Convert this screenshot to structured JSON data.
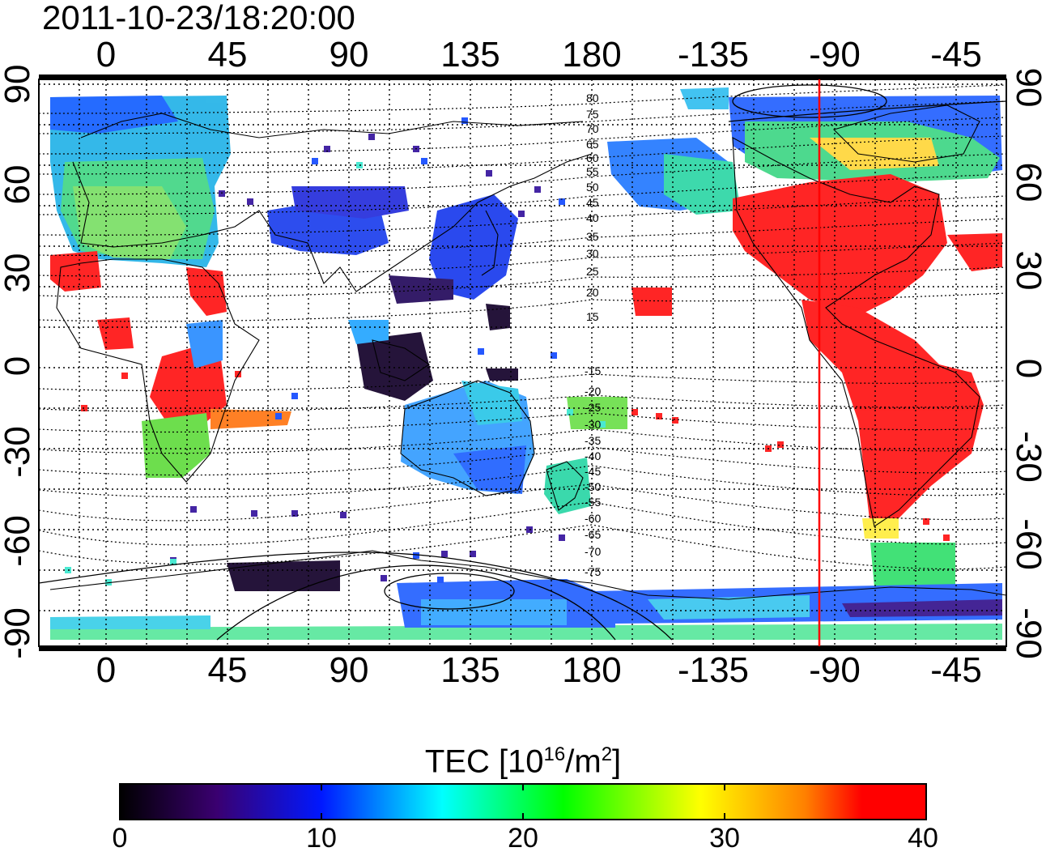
{
  "title": "2011-10-23/18:20:00",
  "map": {
    "top_ticks": [
      "0",
      "45",
      "90",
      "135",
      "180",
      "-135",
      "-90",
      "-45"
    ],
    "bottom_ticks": [
      "0",
      "45",
      "90",
      "135",
      "180",
      "-135",
      "-90",
      "-45"
    ],
    "left_ticks": [
      "90",
      "60",
      "30",
      "0",
      "-30",
      "-60",
      "-90"
    ],
    "right_ticks": [
      "90",
      "60",
      "30",
      "0",
      "-30",
      "-60",
      "-90"
    ],
    "lon_range": [
      -20,
      340
    ],
    "lat_range": [
      -90,
      90
    ],
    "grid": true,
    "marker_line": {
      "lon": -95,
      "color": "#ff0000"
    },
    "contour_labels": [
      "80",
      "75",
      "70",
      "65",
      "60",
      "55",
      "50",
      "45",
      "40",
      "35",
      "30",
      "25",
      "20",
      "15",
      "-15",
      "-20",
      "-25",
      "-30",
      "-35",
      "-40",
      "-45",
      "-50",
      "-55",
      "-60",
      "-65",
      "-70",
      "-75"
    ]
  },
  "colorbar": {
    "label_main": "TEC  [10",
    "label_sup1": "16",
    "label_mid": "/m",
    "label_sup2": "2",
    "label_end": "]",
    "ticks": [
      "0",
      "10",
      "20",
      "30",
      "40"
    ],
    "range": [
      0,
      40
    ],
    "colors": [
      "#000000",
      "#3a0070",
      "#0018ff",
      "#00ffff",
      "#00ff00",
      "#ffff00",
      "#ff8000",
      "#ff0000"
    ]
  }
}
